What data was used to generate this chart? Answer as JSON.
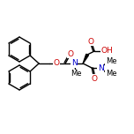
{
  "bg_color": "#ffffff",
  "atom_color": "#000000",
  "oxygen_color": "#cc0000",
  "nitrogen_color": "#0000cc",
  "bond_width": 1.0,
  "font_size": 6.5,
  "figsize": [
    1.52,
    1.52
  ],
  "dpi": 100,
  "xlim": [
    0,
    152
  ],
  "ylim": [
    0,
    152
  ]
}
